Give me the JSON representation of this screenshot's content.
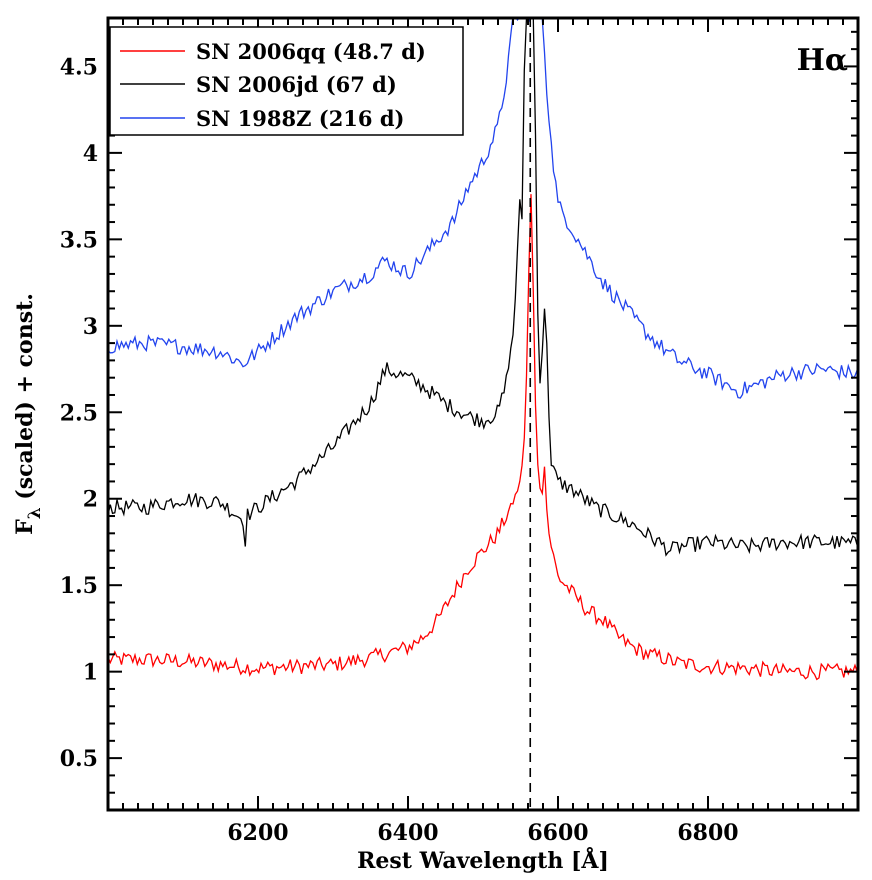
{
  "chart_data": {
    "type": "line",
    "title": "",
    "xlabel": "Rest Wavelength [Å]",
    "ylabel": "F_λ (scaled) + const.",
    "ylabel_main": "F",
    "ylabel_sub": "λ",
    "ylabel_rest": " (scaled) + const.",
    "xlim": [
      6000,
      7000
    ],
    "ylim": [
      0.2,
      4.78
    ],
    "xticks": [
      6200,
      6400,
      6600,
      6800
    ],
    "yticks": [
      0.5,
      1,
      1.5,
      2,
      2.5,
      3,
      3.5,
      4,
      4.5
    ],
    "ytick_labels": [
      "0.5",
      "1",
      "1.5",
      "2",
      "2.5",
      "3",
      "3.5",
      "4",
      "4.5"
    ],
    "xtick_labels": [
      "6200",
      "6400",
      "6600",
      "6800"
    ],
    "reference_line_x": 6563,
    "annotation": "Hα",
    "legend_position": "top-left",
    "series": [
      {
        "name": "SN 2006qq (48.7 d)",
        "color": "#ff0000",
        "x": [
          6000,
          6050,
          6100,
          6150,
          6200,
          6250,
          6300,
          6350,
          6400,
          6420,
          6440,
          6460,
          6480,
          6500,
          6520,
          6540,
          6550,
          6556,
          6560,
          6563,
          6566,
          6570,
          6574,
          6578,
          6582,
          6586,
          6592,
          6600,
          6620,
          6640,
          6660,
          6680,
          6700,
          6720,
          6740,
          6760,
          6800,
          6850,
          6900,
          6950,
          7000
        ],
        "values": [
          1.07,
          1.07,
          1.06,
          1.04,
          1.02,
          1.03,
          1.04,
          1.08,
          1.14,
          1.2,
          1.3,
          1.45,
          1.6,
          1.7,
          1.8,
          1.98,
          2.1,
          2.4,
          3.0,
          3.93,
          3.4,
          2.55,
          2.1,
          2.0,
          2.2,
          1.85,
          1.7,
          1.55,
          1.45,
          1.35,
          1.3,
          1.2,
          1.14,
          1.1,
          1.08,
          1.05,
          1.03,
          1.02,
          1.0,
          1.0,
          1.0
        ]
      },
      {
        "name": "SN 2006jd (67 d)",
        "color": "#000000",
        "x": [
          6000,
          6050,
          6100,
          6150,
          6180,
          6182,
          6184,
          6200,
          6250,
          6300,
          6350,
          6370,
          6400,
          6420,
          6450,
          6480,
          6500,
          6520,
          6530,
          6540,
          6545,
          6548,
          6552,
          6556,
          6558,
          6562,
          6568,
          6574,
          6578,
          6580,
          6584,
          6590,
          6600,
          6620,
          6650,
          6700,
          6750,
          6760,
          6800,
          6850,
          6900,
          6950,
          7000
        ],
        "values": [
          1.95,
          1.95,
          2.0,
          1.98,
          1.88,
          1.63,
          1.9,
          1.95,
          2.1,
          2.3,
          2.55,
          2.75,
          2.7,
          2.65,
          2.55,
          2.48,
          2.45,
          2.5,
          2.65,
          2.95,
          3.3,
          3.76,
          3.6,
          4.78,
          4.78,
          4.78,
          4.78,
          2.75,
          2.6,
          3.12,
          3.05,
          2.2,
          2.1,
          2.05,
          1.95,
          1.85,
          1.7,
          1.72,
          1.75,
          1.72,
          1.75,
          1.75,
          1.74
        ]
      },
      {
        "name": "SN 1988Z (216 d)",
        "color": "#2244ee",
        "x": [
          6000,
          6050,
          6100,
          6150,
          6180,
          6200,
          6250,
          6300,
          6350,
          6370,
          6400,
          6430,
          6460,
          6480,
          6500,
          6520,
          6530,
          6540,
          6548,
          6552,
          6580,
          6584,
          6592,
          6600,
          6620,
          6640,
          6660,
          6680,
          6700,
          6720,
          6740,
          6760,
          6800,
          6840,
          6860,
          6900,
          6950,
          7000
        ],
        "values": [
          2.88,
          2.9,
          2.88,
          2.85,
          2.78,
          2.85,
          3.05,
          3.2,
          3.3,
          3.38,
          3.3,
          3.45,
          3.6,
          3.8,
          3.95,
          4.15,
          4.4,
          4.78,
          4.78,
          4.78,
          4.78,
          4.4,
          4.0,
          3.7,
          3.55,
          3.4,
          3.25,
          3.15,
          3.05,
          2.95,
          2.87,
          2.8,
          2.72,
          2.62,
          2.65,
          2.72,
          2.75,
          2.72
        ]
      }
    ]
  }
}
